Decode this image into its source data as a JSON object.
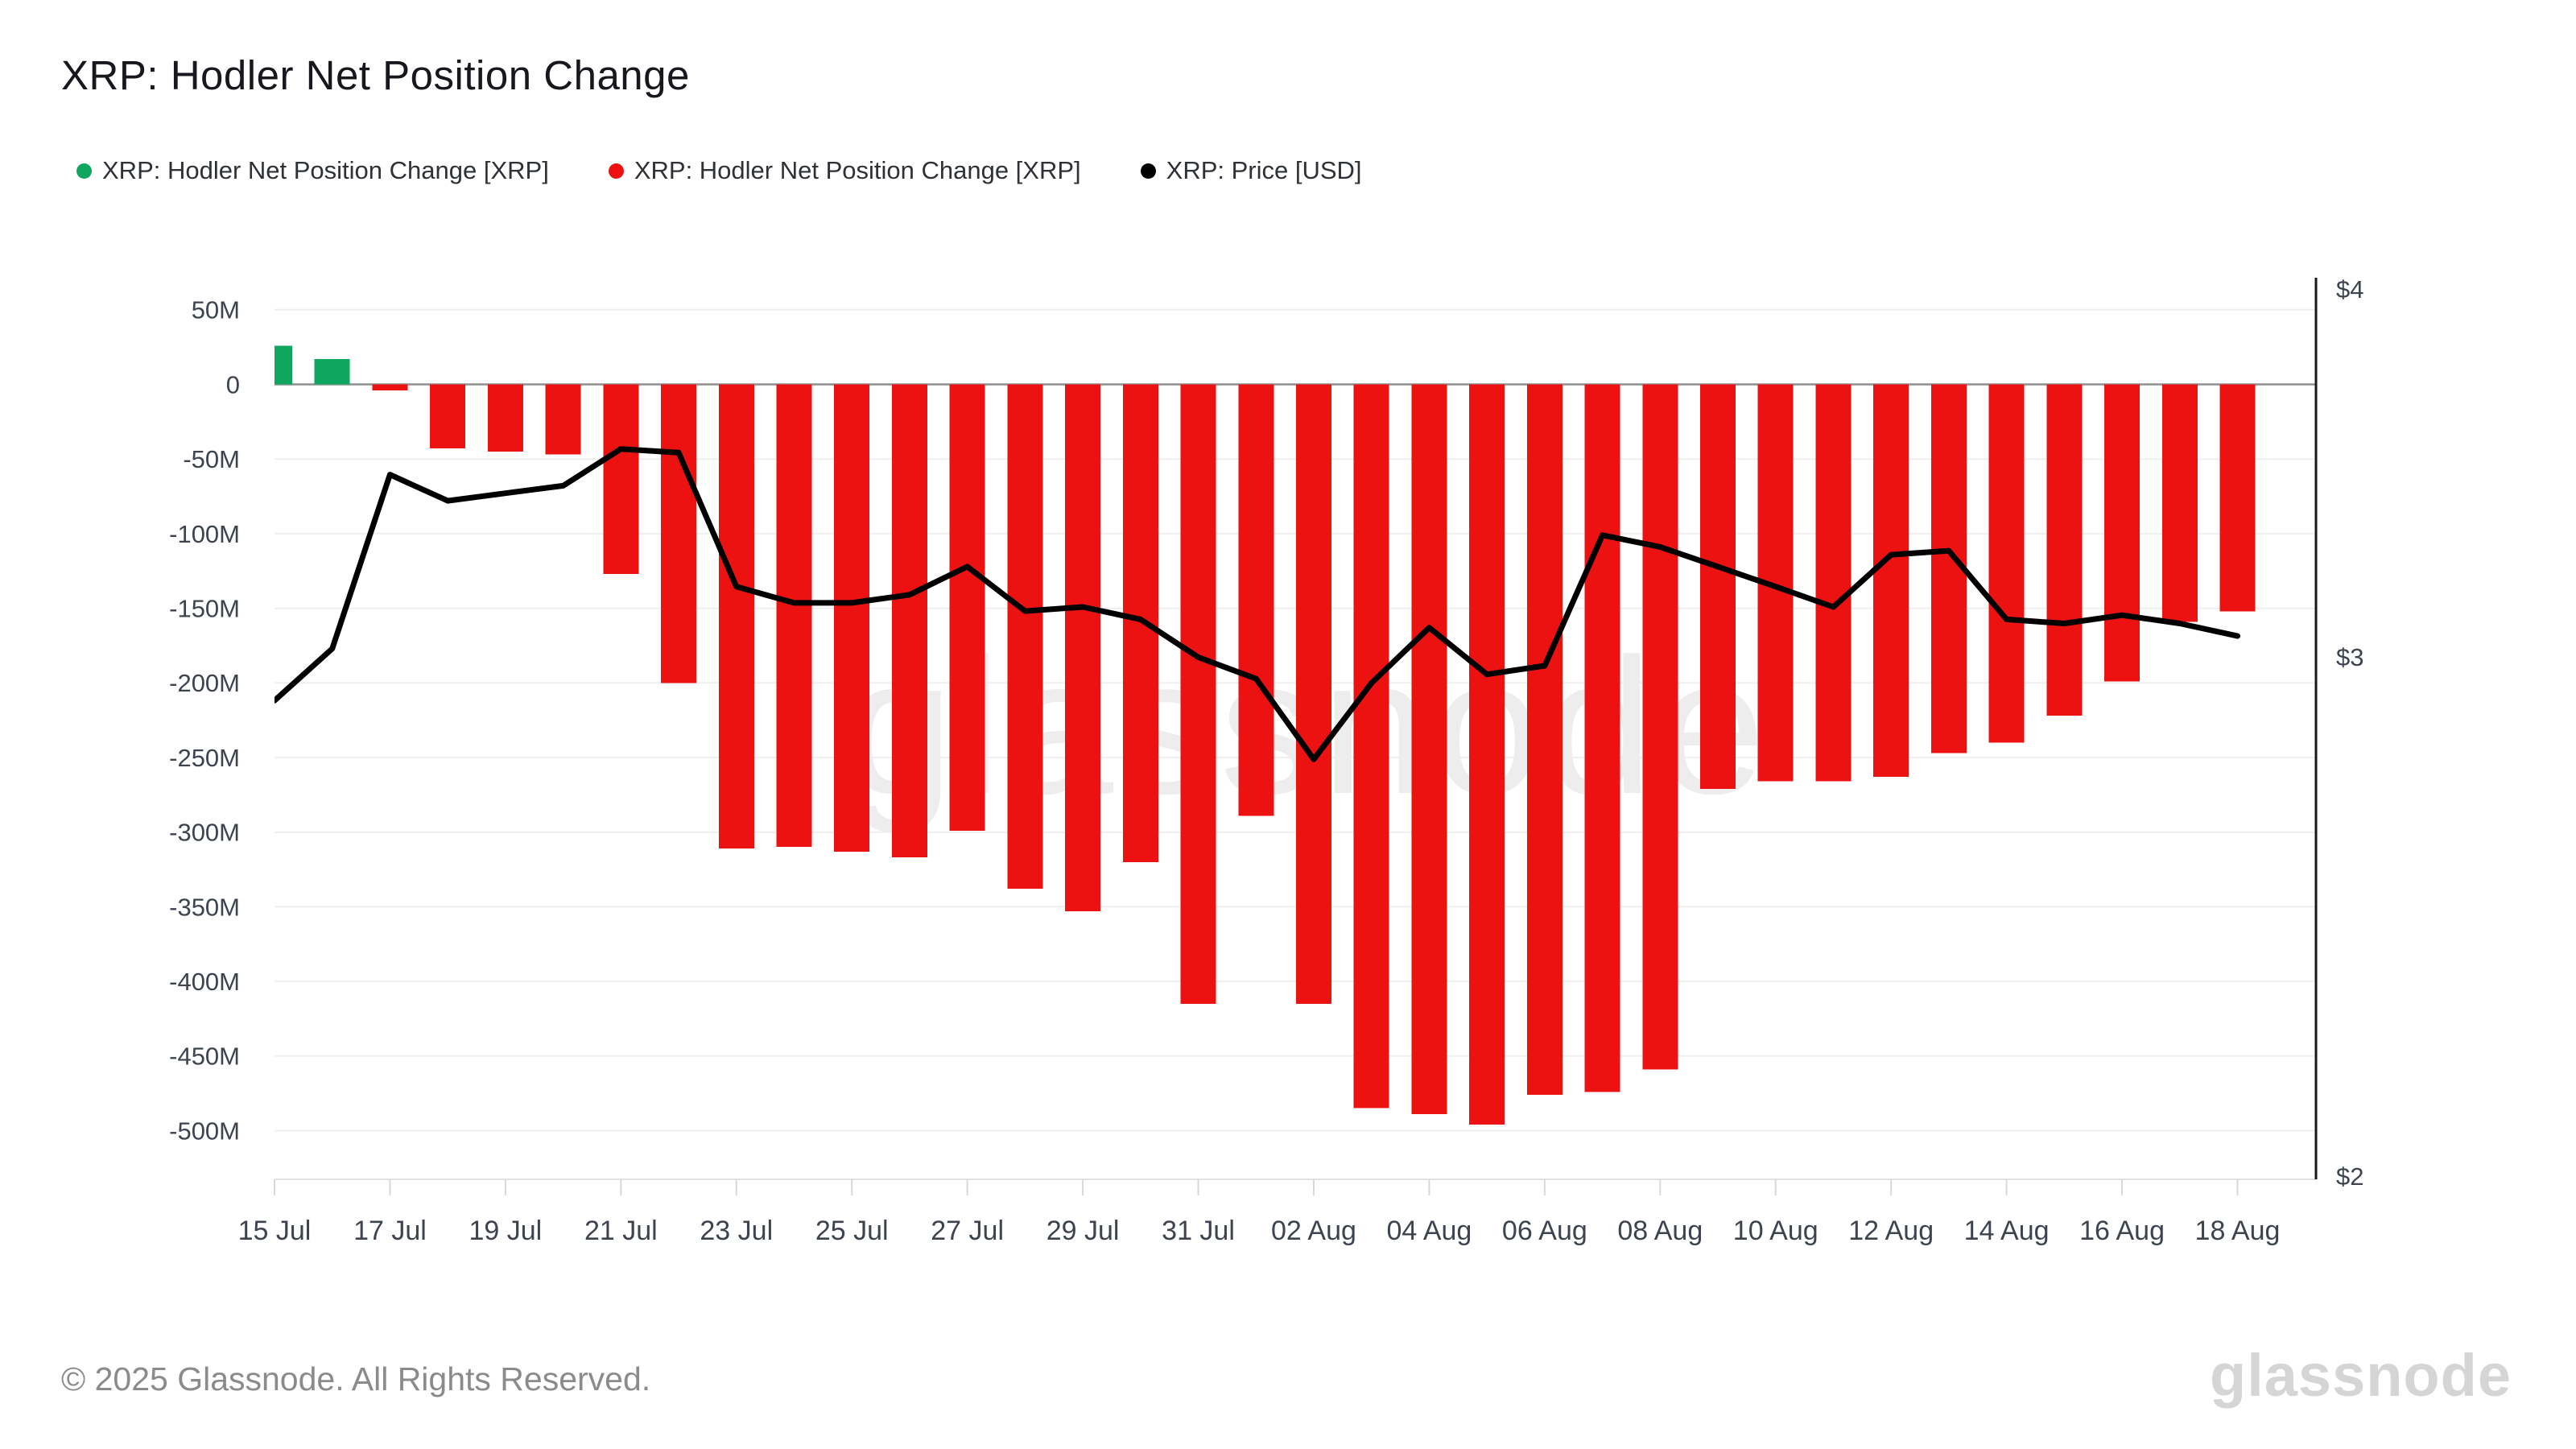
{
  "title": "XRP: Hodler Net Position Change",
  "legend": {
    "items": [
      {
        "label": "XRP: Hodler Net Position Change [XRP]",
        "color": "#0fa75f"
      },
      {
        "label": "XRP: Hodler Net Position Change [XRP]",
        "color": "#ed1212"
      },
      {
        "label": "XRP: Price [USD]",
        "color": "#000000"
      }
    ]
  },
  "watermark": "glassnode",
  "footer": {
    "copyright": "© 2025 Glassnode. All Rights Reserved.",
    "brand": "glassnode"
  },
  "chart_data": {
    "type": "bar+line",
    "title": "XRP: Hodler Net Position Change",
    "categories": [
      "15 Jul",
      "16 Jul",
      "17 Jul",
      "18 Jul",
      "19 Jul",
      "20 Jul",
      "21 Jul",
      "22 Jul",
      "23 Jul",
      "24 Jul",
      "25 Jul",
      "26 Jul",
      "27 Jul",
      "28 Jul",
      "29 Jul",
      "30 Jul",
      "31 Jul",
      "01 Aug",
      "02 Aug",
      "03 Aug",
      "04 Aug",
      "05 Aug",
      "06 Aug",
      "07 Aug",
      "08 Aug",
      "09 Aug",
      "10 Aug",
      "11 Aug",
      "12 Aug",
      "13 Aug",
      "14 Aug",
      "15 Aug",
      "16 Aug",
      "17 Aug",
      "18 Aug"
    ],
    "series": [
      {
        "name": "XRP: Hodler Net Position Change [XRP]",
        "type": "bar",
        "axis": "left",
        "unit": "XRP (millions)",
        "positive_color": "#0fa75f",
        "negative_color": "#ed1212",
        "values": [
          26,
          17,
          -4,
          -43,
          -45,
          -47,
          -127,
          -200,
          -311,
          -310,
          -313,
          -317,
          -299,
          -338,
          -353,
          -320,
          -415,
          -289,
          -415,
          -485,
          -489,
          -496,
          -476,
          -474,
          -459,
          -271,
          -266,
          -266,
          -263,
          -247,
          -240,
          -222,
          -199,
          -159,
          -152
        ]
      },
      {
        "name": "XRP: Price [USD]",
        "type": "line",
        "axis": "right",
        "unit": "USD",
        "color": "#000000",
        "values": [
          2.9,
          3.02,
          3.46,
          3.39,
          3.41,
          3.43,
          3.53,
          3.52,
          3.17,
          3.13,
          3.13,
          3.15,
          3.22,
          3.11,
          3.12,
          3.09,
          3.0,
          2.95,
          2.77,
          2.94,
          3.07,
          2.96,
          2.98,
          3.3,
          3.27,
          3.22,
          3.17,
          3.12,
          3.25,
          3.26,
          3.09,
          3.08,
          3.1,
          3.08,
          3.05
        ]
      }
    ],
    "left_axis": {
      "unit": "XRP",
      "tick_labels": [
        "50M",
        "0",
        "-50M",
        "-100M",
        "-150M",
        "-200M",
        "-250M",
        "-300M",
        "-350M",
        "-400M",
        "-450M",
        "-500M"
      ],
      "tick_values_millions": [
        50,
        0,
        -50,
        -100,
        -150,
        -200,
        -250,
        -300,
        -350,
        -400,
        -450,
        -500
      ]
    },
    "right_axis": {
      "scale": "log",
      "labels": [
        "$4",
        "$3",
        "$2"
      ],
      "values": [
        4,
        3,
        2
      ]
    },
    "x_tick_interval": 2,
    "grid": "horizontal",
    "legend_position": "top-left"
  }
}
